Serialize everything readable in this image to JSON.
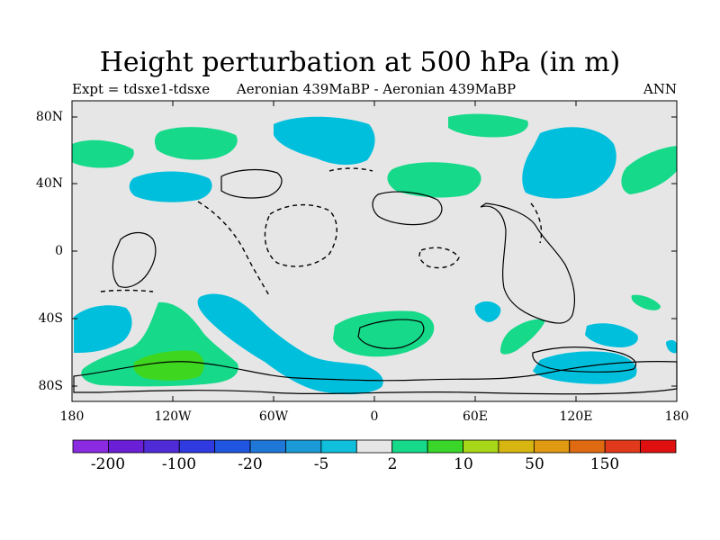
{
  "title": "Height perturbation at 500 hPa (in m)",
  "subtitle_left": "Expt = tdsxe1-tdsxe",
  "subtitle_center": "Aeronian 439MaBP - Aeronian 439MaBP",
  "subtitle_right": "ANN",
  "y_ticks": [
    "80N",
    "40N",
    "0",
    "40S",
    "80S"
  ],
  "x_ticks": [
    "180",
    "120W",
    "60W",
    "0",
    "60E",
    "120E",
    "180"
  ],
  "colorbar": {
    "colors": [
      "#8a2be2",
      "#6a1fd6",
      "#4f2bd8",
      "#2f3ae0",
      "#1f55e0",
      "#1f78d8",
      "#1a9ad6",
      "#0fbfdc",
      "#e6e6e6",
      "#16d98a",
      "#3ad62a",
      "#a8d618",
      "#d8b612",
      "#e09a12",
      "#e06a12",
      "#e03a1a",
      "#e01010"
    ],
    "labels": [
      "-200",
      "-100",
      "-20",
      "-5",
      "2",
      "10",
      "50",
      "150"
    ]
  },
  "colors": {
    "plot_bg": "#e6e6e6",
    "cyan": "#00bfdc",
    "green": "#16d98a",
    "bright_green": "#3fd61f"
  }
}
